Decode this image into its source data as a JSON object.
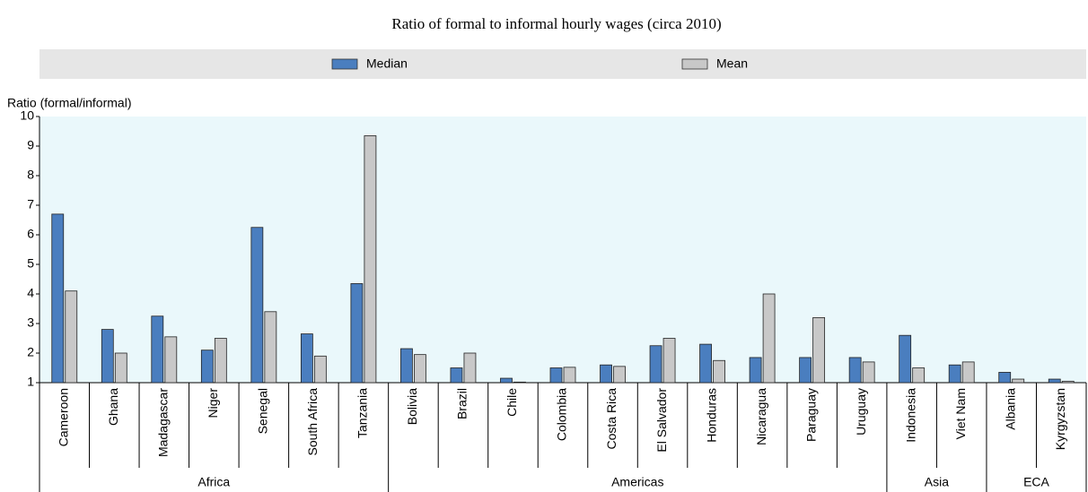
{
  "chart_data": {
    "type": "bar",
    "title": "Ratio of formal to informal hourly wages (circa 2010)",
    "y_label": "Ratio (formal/informal)",
    "groups": [
      {
        "name": "Africa",
        "categories": [
          "Cameroon",
          "Ghana",
          "Madagascar",
          "Niger",
          "Senegal",
          "South Africa",
          "Tanzania"
        ]
      },
      {
        "name": "Americas",
        "categories": [
          "Bolivia",
          "Brazil",
          "Chile",
          "Colombia",
          "Costa Rica",
          "El Salvador",
          "Honduras",
          "Nicaragua",
          "Paraguay",
          "Uruguay"
        ]
      },
      {
        "name": "Asia",
        "categories": [
          "Indonesia",
          "Viet Nam"
        ]
      },
      {
        "name": "ECA",
        "categories": [
          "Albania",
          "Kyrgyzstan"
        ]
      }
    ],
    "series": [
      {
        "name": "Median",
        "color": "#4a7ebf",
        "values": [
          6.7,
          2.8,
          3.25,
          2.1,
          6.25,
          2.65,
          4.35,
          2.15,
          1.5,
          1.15,
          1.5,
          1.6,
          2.25,
          2.3,
          1.85,
          1.85,
          1.85,
          2.6,
          1.6,
          1.35,
          1.12
        ]
      },
      {
        "name": "Mean",
        "color": "#c8c8c8",
        "values": [
          4.1,
          2.0,
          2.55,
          2.5,
          3.4,
          1.9,
          9.35,
          1.95,
          2.0,
          1.02,
          1.52,
          1.55,
          2.5,
          1.75,
          4.0,
          3.2,
          1.7,
          1.5,
          1.7,
          1.12,
          1.05
        ]
      }
    ],
    "ylim": [
      1,
      10
    ],
    "yticks": [
      1,
      2,
      3,
      4,
      5,
      6,
      7,
      8,
      9,
      10
    ],
    "legend": "top"
  }
}
